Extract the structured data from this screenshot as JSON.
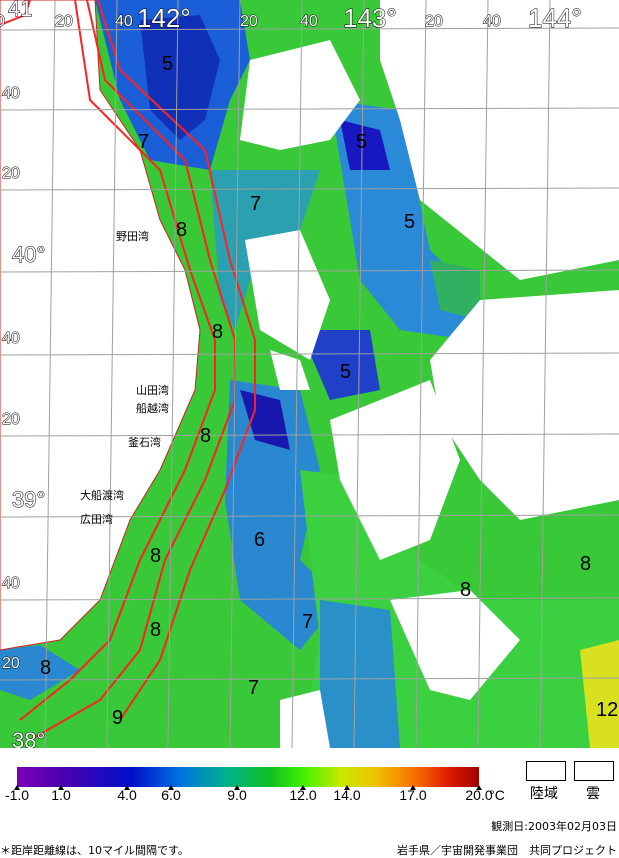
{
  "map": {
    "longitude_labels": [
      "0",
      "20",
      "40",
      "142°",
      "20",
      "40",
      "143°",
      "20",
      "40",
      "144°"
    ],
    "latitude_labels": [
      "41",
      "40",
      "20",
      "40°",
      "40",
      "20",
      "39°",
      "40",
      "20",
      "38°"
    ],
    "contour_labels": [
      "5",
      "7",
      "8",
      "5",
      "5",
      "7",
      "8",
      "5",
      "8",
      "6",
      "8",
      "8",
      "7",
      "8",
      "8",
      "8",
      "9",
      "7",
      "12"
    ],
    "place_names": [
      "野田湾",
      "山田湾",
      "船越湾",
      "釜石湾",
      "大船渡湾",
      "広田湾"
    ],
    "colors": {
      "land": "#ffffff",
      "cloud": "#ffffff",
      "coast_distance_lines": "#ff2020",
      "grid": "#a0a0a0"
    }
  },
  "legend": {
    "ticks": [
      "-1.0",
      "1.0",
      "4.0",
      "6.0",
      "9.0",
      "12.0",
      "14.0",
      "17.0",
      "20.0"
    ],
    "tick_values": [
      -1,
      1,
      4,
      6,
      9,
      12,
      14,
      17,
      20
    ],
    "unit": "°C",
    "land_label": "陸域",
    "cloud_label": "雲"
  },
  "footer": {
    "observation_date": "観測日:2003年02月03日",
    "note": "＊距岸距離線は、10マイル間隔です。",
    "credit": "岩手県／宇宙開発事業団　共同プロジェクト"
  }
}
